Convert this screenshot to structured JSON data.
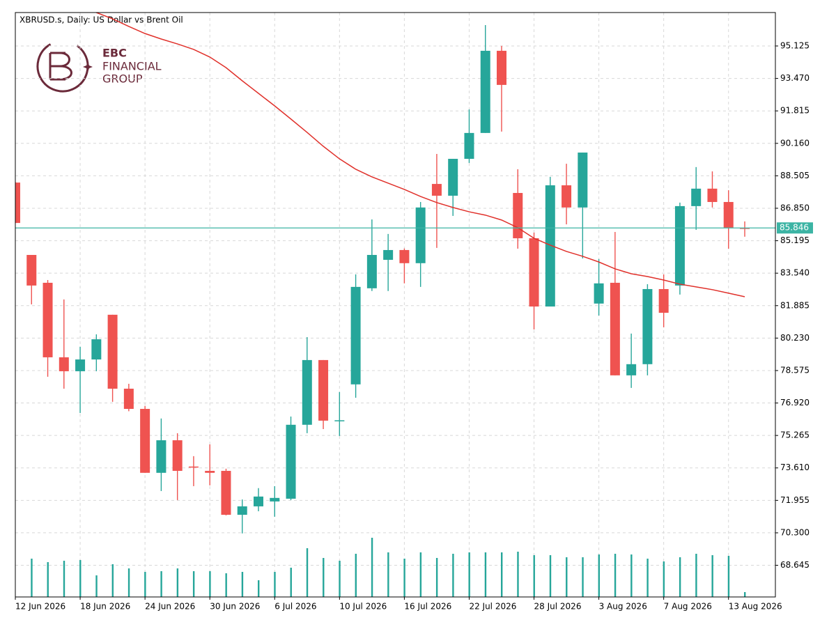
{
  "chart_data": {
    "type": "candlestick",
    "title": "XBRUSD.s, Daily:  US Dollar vs Brent Oil",
    "logo": {
      "name": "EBC",
      "line1": "FINANCIAL",
      "line2": "GROUP",
      "color": "#6b2a3a"
    },
    "categories": [
      "12 Jun 2026",
      null,
      null,
      null,
      "18 Jun 2026",
      null,
      null,
      null,
      "24 Jun 2026",
      null,
      null,
      null,
      "30 Jun 2026",
      null,
      null,
      null,
      "6 Jul 2026",
      null,
      null,
      null,
      "10 Jul 2026",
      null,
      null,
      null,
      "16 Jul 2026",
      null,
      null,
      null,
      "22 Jul 2026",
      null,
      null,
      null,
      "28 Jul 2026",
      null,
      null,
      null,
      "3 Aug 2026",
      null,
      null,
      null,
      "7 Aug 2026",
      null,
      null,
      null,
      "13 Aug 2026",
      null
    ],
    "open": [
      88.16,
      84.47,
      83.05,
      79.25,
      78.54,
      79.14,
      81.42,
      77.65,
      76.62,
      73.36,
      75.02,
      73.68,
      73.46,
      73.46,
      71.22,
      71.65,
      71.9,
      72.04,
      75.81,
      79.11,
      76.0,
      77.87,
      82.77,
      84.22,
      84.72,
      84.05,
      88.09,
      87.49,
      89.37,
      90.69,
      94.88,
      87.63,
      85.32,
      81.84,
      88.02,
      86.89,
      81.99,
      83.05,
      78.33,
      78.9,
      82.73,
      82.91,
      86.96,
      87.85,
      87.17,
      85.85
    ],
    "high": [
      88.2,
      84.47,
      83.19,
      82.2,
      79.79,
      80.42,
      81.42,
      77.9,
      76.77,
      76.13,
      75.38,
      74.21,
      74.81,
      73.57,
      72.0,
      72.58,
      72.68,
      76.23,
      80.28,
      79.11,
      77.48,
      83.48,
      86.28,
      85.54,
      84.8,
      87.17,
      89.62,
      89.37,
      91.89,
      96.19,
      95.13,
      88.84,
      85.61,
      88.45,
      89.12,
      89.69,
      84.26,
      85.64,
      80.46,
      82.98,
      83.48,
      87.14,
      88.95,
      88.73,
      87.77,
      86.18
    ],
    "low": [
      86.1,
      81.95,
      78.26,
      77.65,
      76.41,
      78.54,
      76.98,
      76.5,
      73.36,
      72.43,
      71.97,
      72.68,
      72.72,
      71.19,
      70.27,
      71.4,
      71.12,
      71.97,
      75.38,
      75.59,
      75.24,
      77.19,
      82.63,
      82.63,
      83.02,
      82.84,
      84.83,
      86.46,
      89.16,
      90.69,
      90.76,
      84.79,
      80.67,
      81.84,
      86.03,
      84.29,
      81.38,
      78.33,
      77.69,
      78.33,
      80.78,
      82.45,
      85.75,
      86.89,
      84.79,
      85.4
    ],
    "close": [
      86.1,
      82.91,
      79.25,
      78.54,
      79.14,
      80.17,
      77.65,
      76.62,
      73.36,
      75.02,
      73.46,
      73.64,
      73.36,
      71.22,
      71.65,
      72.15,
      72.08,
      75.81,
      79.11,
      76.02,
      76.04,
      82.84,
      84.47,
      84.72,
      84.05,
      86.89,
      87.49,
      89.37,
      90.69,
      94.88,
      93.14,
      85.32,
      81.84,
      88.02,
      86.89,
      89.69,
      83.02,
      78.33,
      78.9,
      82.73,
      81.52,
      86.96,
      87.85,
      87.17,
      85.86,
      85.846
    ],
    "up_color": "#26a69a",
    "down_color": "#ef5350",
    "ma": {
      "color": "#e0302a",
      "values": [
        null,
        null,
        null,
        null,
        null,
        96.83,
        96.51,
        96.12,
        95.76,
        95.48,
        95.23,
        94.95,
        94.56,
        94.02,
        93.35,
        92.71,
        92.07,
        91.4,
        90.72,
        90.01,
        89.37,
        88.84,
        88.45,
        88.13,
        87.81,
        87.45,
        87.14,
        86.89,
        86.67,
        86.5,
        86.25,
        85.86,
        85.32,
        84.97,
        84.65,
        84.4,
        84.11,
        83.76,
        83.51,
        83.37,
        83.19,
        82.98,
        82.84,
        82.7,
        82.52,
        82.34
      ]
    },
    "volume": {
      "color": "#26a69a",
      "values": [
        null,
        55,
        50,
        52,
        53,
        31,
        47,
        41,
        36,
        37,
        41,
        37,
        37,
        34,
        36,
        24,
        36,
        42,
        70,
        56,
        52,
        62,
        85,
        64,
        55,
        64,
        56,
        62,
        64,
        64,
        64,
        65,
        60,
        60,
        57,
        57,
        61,
        62,
        61,
        55,
        51,
        57,
        62,
        60,
        59,
        7
      ]
    },
    "last_price": 85.846,
    "last_price_color": "#3cb4a4",
    "ylim": [
      67.03,
      96.83
    ],
    "yticks": [
      95.125,
      {
        "value": 93.47,
        "label": "93.470"
      },
      91.815,
      {
        "value": 90.16,
        "label": "90.160"
      },
      88.505,
      {
        "value": 86.85,
        "label": "86.850"
      },
      85.195,
      {
        "value": 83.54,
        "label": "83.540"
      },
      81.885,
      {
        "value": 80.23,
        "label": "80.230"
      },
      78.575,
      {
        "value": 76.92,
        "label": "76.920"
      },
      75.265,
      {
        "value": 73.61,
        "label": "73.610"
      },
      71.955,
      {
        "value": 70.3,
        "label": "70.300"
      },
      68.645
    ],
    "grid": true
  }
}
